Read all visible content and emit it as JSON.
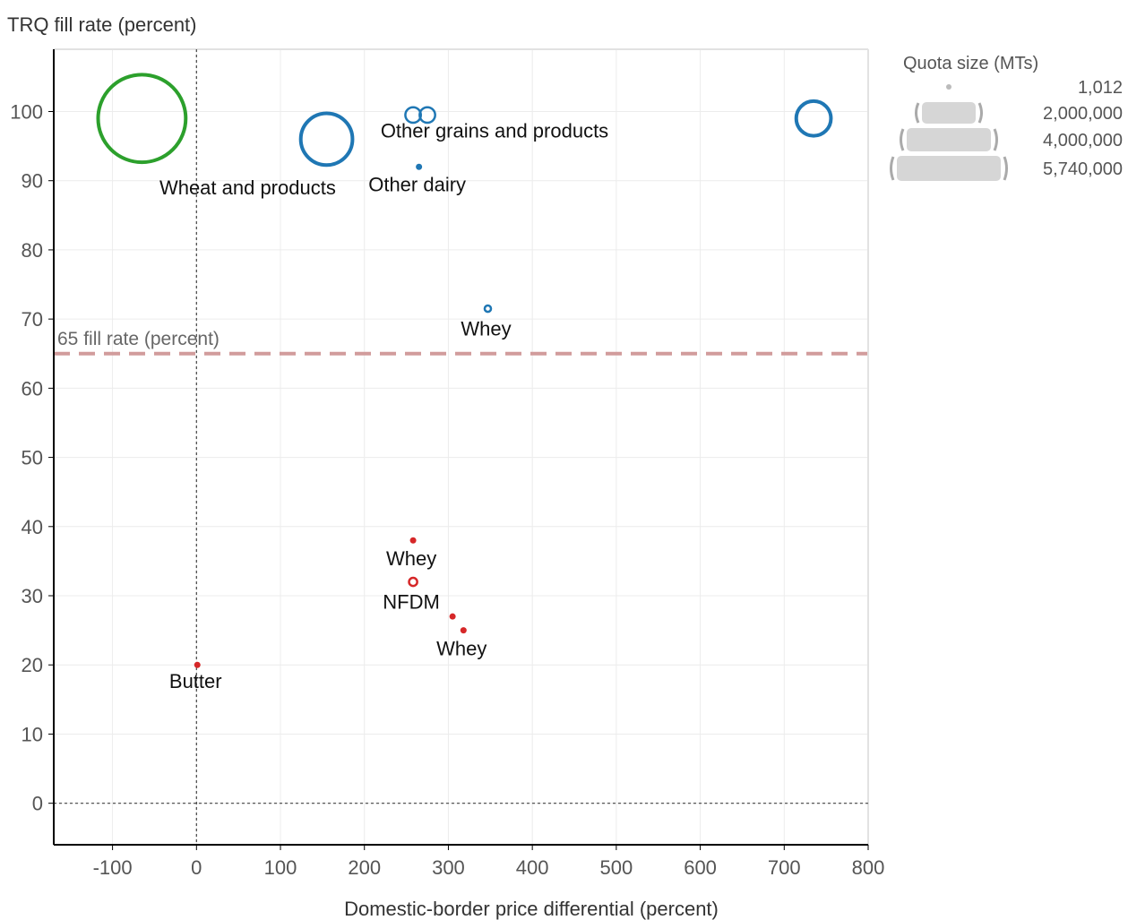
{
  "chart_data": {
    "type": "scatter",
    "title": "",
    "ylabel": "TRQ fill rate (percent)",
    "xlabel": "Domestic-border price differential (percent)",
    "xlim": [
      -170,
      800
    ],
    "ylim": [
      -6,
      109
    ],
    "x_ticks": [
      -100,
      0,
      100,
      200,
      300,
      400,
      500,
      600,
      700,
      800
    ],
    "y_ticks": [
      0,
      10,
      20,
      30,
      40,
      50,
      60,
      70,
      80,
      90,
      100
    ],
    "x_tick_labels": [
      "-100",
      "0",
      "100",
      "200",
      "300",
      "400",
      "500",
      "600",
      "700",
      "800"
    ],
    "y_tick_labels": [
      "0",
      "10",
      "20",
      "30",
      "40",
      "50",
      "60",
      "70",
      "80",
      "90",
      "100"
    ],
    "grid": true,
    "zero_lines": true,
    "size_encoding": "Quota size (MTs)",
    "points": [
      {
        "x": -65,
        "y": 99,
        "size": 5740000,
        "color": "#2ca02c",
        "label": "Wheat and products"
      },
      {
        "x": 155,
        "y": 96,
        "size": 2000000,
        "color": "#1f77b4",
        "label": ""
      },
      {
        "x": 258,
        "y": 99.5,
        "size": 180000,
        "color": "#1f77b4",
        "label": ""
      },
      {
        "x": 275,
        "y": 99.5,
        "size": 180000,
        "color": "#1f77b4",
        "label": "Other grains and products"
      },
      {
        "x": 265,
        "y": 92,
        "size": 1012,
        "color": "#1f77b4",
        "label": "Other dairy"
      },
      {
        "x": 735,
        "y": 99,
        "size": 900000,
        "color": "#1f77b4",
        "label": ""
      },
      {
        "x": 347,
        "y": 71.5,
        "size": 30000,
        "color": "#1f77b4",
        "label": "Whey"
      },
      {
        "x": 258,
        "y": 38,
        "size": 3000,
        "color": "#d62728",
        "label": "Whey"
      },
      {
        "x": 258,
        "y": 32,
        "size": 50000,
        "color": "#d62728",
        "label": "NFDM"
      },
      {
        "x": 305,
        "y": 27,
        "size": 1500,
        "color": "#d62728",
        "label": ""
      },
      {
        "x": 318,
        "y": 25,
        "size": 8000,
        "color": "#d62728",
        "label": "Whey"
      },
      {
        "x": 1,
        "y": 20,
        "size": 1012,
        "color": "#d62728",
        "label": "Butter"
      }
    ],
    "reference_line": {
      "y": 65,
      "label": "65 fill rate (percent)",
      "color": "#d19c9c"
    },
    "legend": {
      "title": "Quota size (MTs)",
      "placement": "top-right",
      "entries": [
        "1,012",
        "2,000,000",
        "4,000,000",
        "5,740,000"
      ],
      "sizes": [
        1012,
        2000000,
        4000000,
        5740000
      ]
    }
  }
}
